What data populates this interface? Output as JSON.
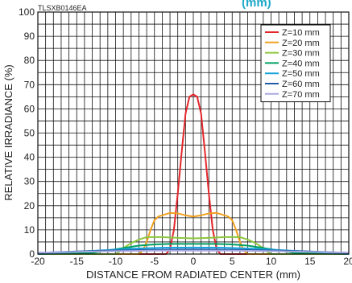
{
  "header": {
    "title_fragment": "(mm)",
    "doc_code": "TLSXB0146EA"
  },
  "colors": {
    "title": "#1aa7c8",
    "grid": "#111111",
    "background": "#ffffff"
  },
  "chart_data": {
    "type": "line",
    "xlabel": "DISTANCE FROM RADIATED CENTER (mm)",
    "ylabel": "RELATIVE IRRADIANCE (%)",
    "xlim": [
      -20,
      20
    ],
    "ylim": [
      0,
      100
    ],
    "x_ticks": [
      "-20",
      "-15",
      "-10",
      "-5",
      "0",
      "5",
      "10",
      "15",
      "20"
    ],
    "y_ticks": [
      "0",
      "10",
      "20",
      "30",
      "40",
      "50",
      "60",
      "70",
      "80",
      "90",
      "100"
    ],
    "grid": true,
    "legend_position": "top-right",
    "series": [
      {
        "name": "Z=10 mm",
        "color": "#e3262b",
        "points": [
          [
            -20,
            0
          ],
          [
            -3.5,
            0
          ],
          [
            -3,
            2
          ],
          [
            -2.5,
            10
          ],
          [
            -2,
            25
          ],
          [
            -1.5,
            42
          ],
          [
            -1,
            58
          ],
          [
            -0.5,
            65
          ],
          [
            0,
            66
          ],
          [
            0.5,
            65
          ],
          [
            1,
            58
          ],
          [
            1.5,
            42
          ],
          [
            2,
            25
          ],
          [
            2.5,
            10
          ],
          [
            3,
            2
          ],
          [
            3.5,
            0
          ],
          [
            20,
            0
          ]
        ]
      },
      {
        "name": "Z=20 mm",
        "color": "#f0a01e",
        "points": [
          [
            -20,
            0
          ],
          [
            -7,
            0
          ],
          [
            -6.5,
            1.5
          ],
          [
            -6,
            5
          ],
          [
            -5.5,
            10
          ],
          [
            -5,
            14
          ],
          [
            -4.5,
            15.5
          ],
          [
            -4,
            16
          ],
          [
            -3,
            17
          ],
          [
            -2,
            16.8
          ],
          [
            -1,
            16
          ],
          [
            0,
            15.5
          ],
          [
            1,
            16
          ],
          [
            2,
            16.8
          ],
          [
            3,
            17
          ],
          [
            4,
            16
          ],
          [
            4.5,
            15.5
          ],
          [
            5,
            14
          ],
          [
            5.5,
            10
          ],
          [
            6,
            5
          ],
          [
            6.5,
            1.5
          ],
          [
            7,
            0
          ],
          [
            20,
            0
          ]
        ]
      },
      {
        "name": "Z=30 mm",
        "color": "#8dc63f",
        "points": [
          [
            -20,
            0
          ],
          [
            -10,
            0
          ],
          [
            -9.5,
            1
          ],
          [
            -9,
            2.5
          ],
          [
            -8,
            4.5
          ],
          [
            -7,
            6
          ],
          [
            -6,
            7
          ],
          [
            -4,
            7
          ],
          [
            -2,
            6.7
          ],
          [
            0,
            6.5
          ],
          [
            2,
            6.7
          ],
          [
            4,
            7
          ],
          [
            6,
            7
          ],
          [
            7,
            6
          ],
          [
            8,
            4.5
          ],
          [
            9,
            2.5
          ],
          [
            9.5,
            1
          ],
          [
            10,
            0
          ],
          [
            20,
            0
          ]
        ]
      },
      {
        "name": "Z=40 mm",
        "color": "#00a064",
        "points": [
          [
            -20,
            0
          ],
          [
            -13,
            0.5
          ],
          [
            -11,
            1.5
          ],
          [
            -9,
            2.5
          ],
          [
            -7,
            3.5
          ],
          [
            -5,
            4
          ],
          [
            -3,
            4.2
          ],
          [
            0,
            4.2
          ],
          [
            3,
            4.2
          ],
          [
            5,
            4
          ],
          [
            7,
            3.5
          ],
          [
            9,
            2.5
          ],
          [
            11,
            1.5
          ],
          [
            13,
            0.5
          ],
          [
            20,
            0
          ]
        ]
      },
      {
        "name": "Z=50 mm",
        "color": "#17a3dc",
        "points": [
          [
            -20,
            0
          ],
          [
            -16,
            0.8
          ],
          [
            -12,
            1.5
          ],
          [
            -8,
            2.2
          ],
          [
            -4,
            2.6
          ],
          [
            0,
            2.7
          ],
          [
            4,
            2.6
          ],
          [
            8,
            2.2
          ],
          [
            12,
            1.5
          ],
          [
            16,
            0.8
          ],
          [
            20,
            0
          ]
        ]
      },
      {
        "name": "Z=60 mm",
        "color": "#1f5ca8",
        "points": [
          [
            -20,
            0.5
          ],
          [
            -15,
            1.1
          ],
          [
            -10,
            1.5
          ],
          [
            -5,
            1.8
          ],
          [
            0,
            1.9
          ],
          [
            5,
            1.8
          ],
          [
            10,
            1.5
          ],
          [
            15,
            1.1
          ],
          [
            20,
            0.5
          ]
        ]
      },
      {
        "name": "Z=70 mm",
        "color": "#a9a9e0",
        "points": [
          [
            -20,
            0.6
          ],
          [
            -15,
            0.9
          ],
          [
            -10,
            1.2
          ],
          [
            -5,
            1.4
          ],
          [
            0,
            1.4
          ],
          [
            5,
            1.4
          ],
          [
            10,
            1.2
          ],
          [
            15,
            0.9
          ],
          [
            20,
            0.6
          ]
        ]
      }
    ]
  }
}
